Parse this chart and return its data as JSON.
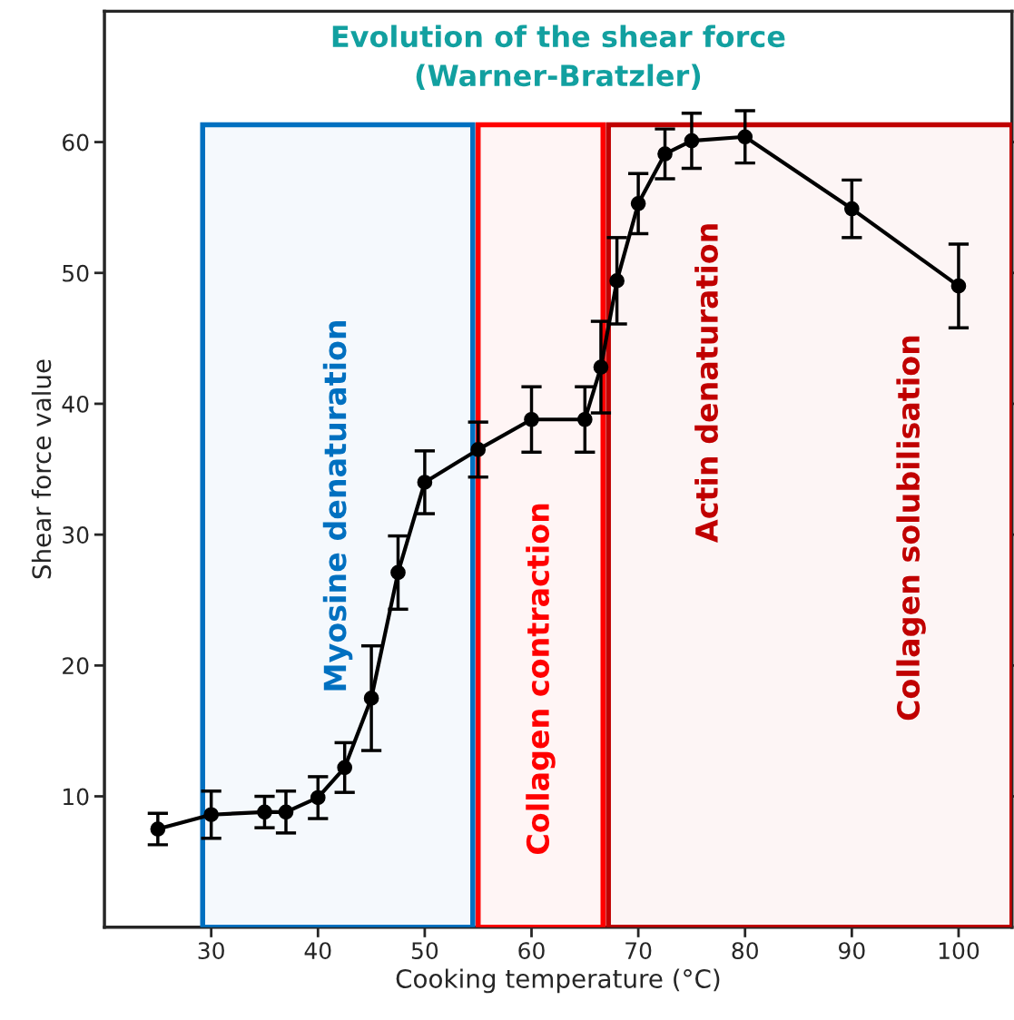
{
  "chart_data": {
    "type": "line",
    "title": "Evolution of the shear force\n(Warner-Bratzler)",
    "xlabel": "Cooking temperature (°C)",
    "ylabel": "Shear force value",
    "x": [
      25,
      30,
      35,
      37,
      40,
      42.5,
      45,
      47.5,
      50,
      55,
      60,
      65,
      66.5,
      68,
      70,
      72.5,
      75,
      80,
      90,
      100
    ],
    "series": [
      {
        "color": "#000000",
        "marker": "circle",
        "line_style": "solid",
        "values": [
          7.5,
          8.6,
          8.8,
          8.8,
          9.9,
          12.2,
          17.5,
          27.1,
          34.0,
          36.5,
          38.8,
          38.8,
          42.8,
          49.4,
          55.3,
          59.1,
          60.1,
          60.4,
          54.9,
          49.0
        ],
        "errors": [
          1.2,
          1.8,
          1.2,
          1.6,
          1.6,
          1.9,
          4,
          2.8,
          2.4,
          2.1,
          2.5,
          2.5,
          3.5,
          3.3,
          2.3,
          1.9,
          2.1,
          2,
          2.2,
          3.2
        ]
      }
    ],
    "xlim": [
      20,
      105
    ],
    "ylim": [
      0,
      70
    ],
    "xticks": [
      30,
      40,
      50,
      60,
      70,
      80,
      90,
      100
    ],
    "yticks": [
      10,
      20,
      30,
      40,
      50,
      60
    ],
    "grid": false,
    "bands": [
      {
        "axis": "x",
        "from": 29.2,
        "to": 54.5,
        "label": "Myosine denaturation",
        "color": "#0070c0"
      },
      {
        "axis": "x",
        "from": 55.0,
        "to": 66.7,
        "label": "Collagen contraction",
        "color": "#ff0000"
      },
      {
        "axis": "x",
        "from": 67.2,
        "to": 105,
        "label": "Actin denaturation",
        "color": "#c00000"
      }
    ],
    "annotations": [
      "Collagen solubilisation"
    ]
  }
}
